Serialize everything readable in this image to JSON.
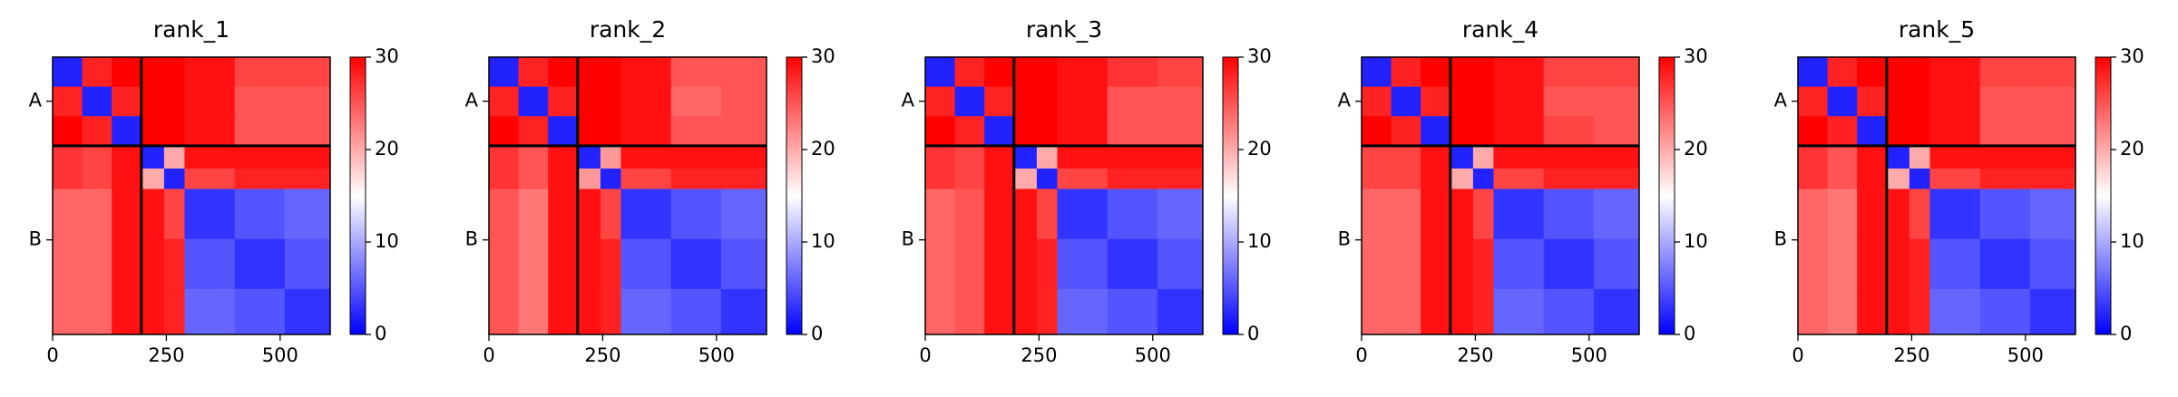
{
  "chart_data": [
    {
      "type": "heatmap",
      "title": "rank_1",
      "colormap": "bwr",
      "clim": [
        0,
        30
      ],
      "cticks": [
        0,
        10,
        20,
        30
      ],
      "edges": [
        0,
        65,
        130,
        195,
        245,
        290,
        400,
        510,
        610
      ],
      "xlim": [
        0,
        610
      ],
      "ylim": [
        610,
        0
      ],
      "xticks": [
        0,
        250,
        500
      ],
      "yticks": [
        {
          "value": 97,
          "label": "A"
        },
        {
          "value": 402,
          "label": "B"
        }
      ],
      "chain_breaks": [
        195
      ],
      "z": [
        [
          2,
          28,
          30,
          30,
          30,
          29,
          26,
          26
        ],
        [
          28,
          2,
          28,
          30,
          30,
          29,
          25,
          25
        ],
        [
          30,
          28,
          2,
          30,
          30,
          29,
          25,
          25
        ],
        [
          27,
          26,
          29,
          2,
          20,
          29,
          29,
          29
        ],
        [
          27,
          26,
          29,
          20,
          2,
          26,
          28,
          28
        ],
        [
          24,
          24,
          29,
          29,
          26,
          3,
          5,
          6
        ],
        [
          24,
          24,
          29,
          29,
          28,
          5,
          3,
          5
        ],
        [
          24,
          24,
          29,
          29,
          28,
          6,
          5,
          3
        ]
      ]
    },
    {
      "type": "heatmap",
      "title": "rank_2",
      "colormap": "bwr",
      "clim": [
        0,
        30
      ],
      "cticks": [
        0,
        10,
        20,
        30
      ],
      "edges": [
        0,
        65,
        130,
        195,
        245,
        290,
        400,
        510,
        610
      ],
      "xlim": [
        0,
        610
      ],
      "ylim": [
        610,
        0
      ],
      "xticks": [
        0,
        250,
        500
      ],
      "yticks": [
        {
          "value": 97,
          "label": "A"
        },
        {
          "value": 402,
          "label": "B"
        }
      ],
      "chain_breaks": [
        195
      ],
      "z": [
        [
          2,
          28,
          30,
          30,
          30,
          29,
          25,
          25
        ],
        [
          28,
          2,
          28,
          30,
          30,
          29,
          24,
          25
        ],
        [
          30,
          28,
          2,
          30,
          30,
          29,
          25,
          25
        ],
        [
          27,
          25,
          29,
          2,
          21,
          29,
          29,
          29
        ],
        [
          27,
          25,
          29,
          21,
          2,
          26,
          28,
          28
        ],
        [
          25,
          23,
          29,
          29,
          26,
          3,
          5,
          6
        ],
        [
          25,
          23,
          29,
          29,
          28,
          5,
          3,
          5
        ],
        [
          25,
          23,
          29,
          29,
          28,
          6,
          5,
          3
        ]
      ]
    },
    {
      "type": "heatmap",
      "title": "rank_3",
      "colormap": "bwr",
      "clim": [
        0,
        30
      ],
      "cticks": [
        0,
        10,
        20,
        30
      ],
      "edges": [
        0,
        65,
        130,
        195,
        245,
        290,
        400,
        510,
        610
      ],
      "xlim": [
        0,
        610
      ],
      "ylim": [
        610,
        0
      ],
      "xticks": [
        0,
        250,
        500
      ],
      "yticks": [
        {
          "value": 97,
          "label": "A"
        },
        {
          "value": 402,
          "label": "B"
        }
      ],
      "chain_breaks": [
        195
      ],
      "z": [
        [
          2,
          28,
          30,
          30,
          30,
          29,
          27,
          26
        ],
        [
          28,
          2,
          28,
          30,
          30,
          29,
          25,
          25
        ],
        [
          30,
          28,
          2,
          30,
          30,
          29,
          25,
          25
        ],
        [
          27,
          26,
          29,
          2,
          20,
          29,
          29,
          29
        ],
        [
          27,
          26,
          29,
          20,
          2,
          26,
          28,
          28
        ],
        [
          24,
          25,
          29,
          29,
          26,
          3,
          5,
          6
        ],
        [
          24,
          25,
          29,
          29,
          28,
          5,
          3,
          5
        ],
        [
          24,
          25,
          29,
          29,
          28,
          6,
          5,
          3
        ]
      ]
    },
    {
      "type": "heatmap",
      "title": "rank_4",
      "colormap": "bwr",
      "clim": [
        0,
        30
      ],
      "cticks": [
        0,
        10,
        20,
        30
      ],
      "edges": [
        0,
        65,
        130,
        195,
        245,
        290,
        400,
        510,
        610
      ],
      "xlim": [
        0,
        610
      ],
      "ylim": [
        610,
        0
      ],
      "xticks": [
        0,
        250,
        500
      ],
      "yticks": [
        {
          "value": 97,
          "label": "A"
        },
        {
          "value": 402,
          "label": "B"
        }
      ],
      "chain_breaks": [
        195
      ],
      "z": [
        [
          2,
          28,
          30,
          30,
          30,
          29,
          26,
          26
        ],
        [
          28,
          2,
          28,
          30,
          30,
          29,
          25,
          25
        ],
        [
          30,
          28,
          2,
          30,
          30,
          29,
          26,
          25
        ],
        [
          26,
          26,
          29,
          2,
          20,
          29,
          29,
          29
        ],
        [
          26,
          26,
          29,
          20,
          2,
          26,
          28,
          28
        ],
        [
          24,
          24,
          29,
          29,
          26,
          3,
          5,
          6
        ],
        [
          24,
          24,
          29,
          29,
          28,
          5,
          3,
          5
        ],
        [
          24,
          24,
          29,
          29,
          28,
          6,
          5,
          3
        ]
      ]
    },
    {
      "type": "heatmap",
      "title": "rank_5",
      "colormap": "bwr",
      "clim": [
        0,
        30
      ],
      "cticks": [
        0,
        10,
        20,
        30
      ],
      "edges": [
        0,
        65,
        130,
        195,
        245,
        290,
        400,
        510,
        610
      ],
      "xlim": [
        0,
        610
      ],
      "ylim": [
        610,
        0
      ],
      "xticks": [
        0,
        250,
        500
      ],
      "yticks": [
        {
          "value": 97,
          "label": "A"
        },
        {
          "value": 402,
          "label": "B"
        }
      ],
      "chain_breaks": [
        195
      ],
      "z": [
        [
          2,
          28,
          30,
          30,
          30,
          29,
          26,
          26
        ],
        [
          28,
          2,
          28,
          30,
          30,
          29,
          25,
          25
        ],
        [
          30,
          28,
          2,
          30,
          30,
          29,
          25,
          25
        ],
        [
          27,
          25,
          29,
          2,
          20,
          29,
          29,
          29
        ],
        [
          27,
          25,
          29,
          20,
          2,
          26,
          28,
          28
        ],
        [
          24,
          23,
          29,
          29,
          26,
          3,
          5,
          6
        ],
        [
          24,
          23,
          29,
          29,
          28,
          5,
          3,
          5
        ],
        [
          24,
          23,
          29,
          29,
          28,
          6,
          5,
          3
        ]
      ]
    }
  ]
}
